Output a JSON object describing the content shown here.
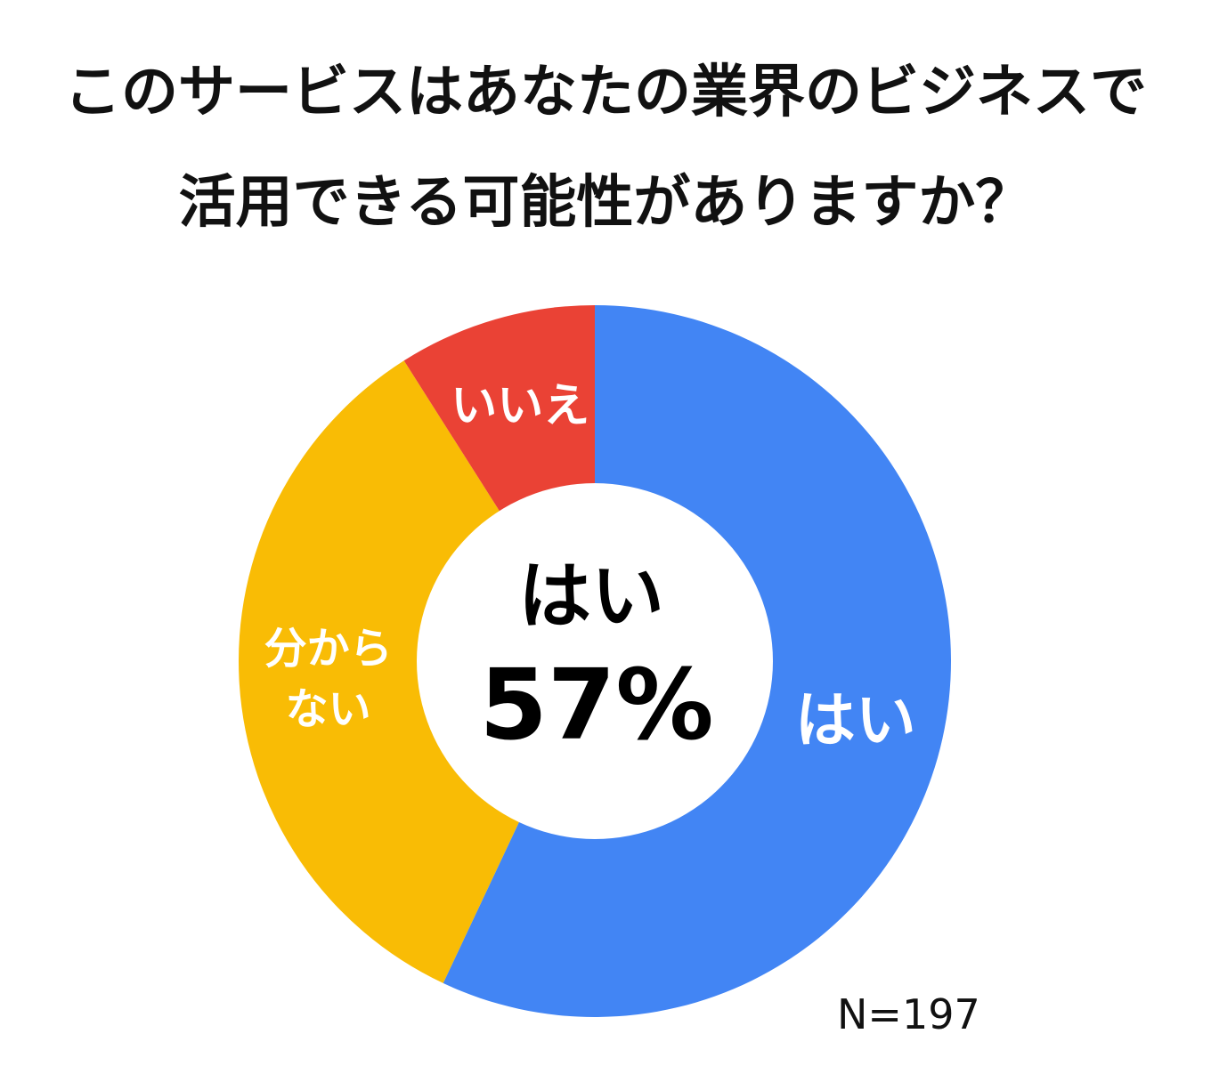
{
  "chart_data": {
    "type": "pie",
    "title_lines": [
      "このサービスはあなたの業界のビジネスで",
      "活用できる可能性がありますか？"
    ],
    "slices": [
      {
        "label": "はい",
        "label_lines": [
          "はい"
        ],
        "value": 57,
        "color": "#4285f4"
      },
      {
        "label": "分からない",
        "label_lines": [
          "分から",
          "ない"
        ],
        "value": 34,
        "color": "#f9bc05"
      },
      {
        "label": "いいえ",
        "label_lines": [
          "いいえ"
        ],
        "value": 9,
        "color": "#ea4235"
      }
    ],
    "center": {
      "label": "はい",
      "value_text": "57%"
    },
    "note": "N=197"
  }
}
